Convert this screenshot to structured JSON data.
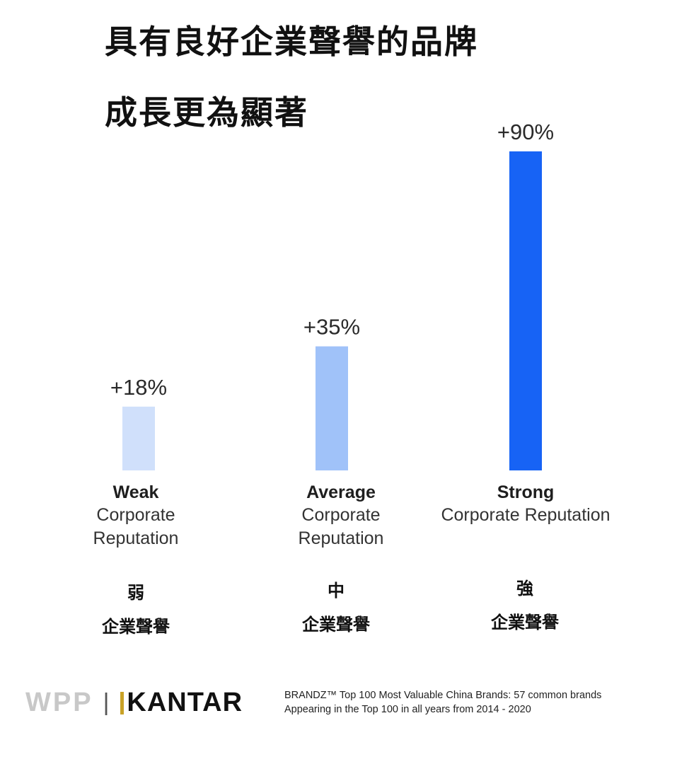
{
  "title_line1": "具有良好企業聲譽的品牌",
  "title_line2": "成長更為顯著",
  "chart_data": {
    "type": "bar",
    "categories": [
      "Weak Corporate Reputation",
      "Average Corporate Reputation",
      "Strong Corporate Reputation"
    ],
    "values": [
      18,
      35,
      90
    ],
    "value_labels": [
      "+18%",
      "+35%",
      "+90%"
    ],
    "colors": [
      "#d0e0fb",
      "#a0c2f9",
      "#1763f5"
    ],
    "ylim": [
      0,
      90
    ],
    "grid": false
  },
  "groups": [
    {
      "strength_en": "Weak",
      "rest_en": [
        "Corporate",
        "Reputation"
      ],
      "strength_zh": "弱",
      "rest_zh": "企業聲譽"
    },
    {
      "strength_en": "Average",
      "rest_en": [
        "Corporate",
        "Reputation"
      ],
      "strength_zh": "中",
      "rest_zh": "企業聲譽"
    },
    {
      "strength_en": "Strong",
      "rest_en": [
        "Corporate Reputation"
      ],
      "strength_zh": "強",
      "rest_zh": "企業聲譽"
    }
  ],
  "footer": {
    "logo_wpp": "WPP",
    "logo_separator": "|",
    "logo_kantar": "KANTAR",
    "source_line1": "BRANDZ™ Top 100 Most Valuable China Brands: 57 common brands",
    "source_line2": "Appearing in the Top 100 in all years from 2014 - 2020"
  }
}
